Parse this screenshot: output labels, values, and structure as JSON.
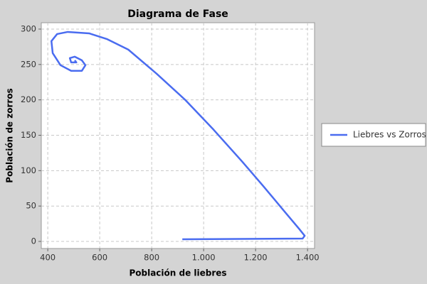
{
  "chart_data": {
    "type": "line",
    "title": "Diagrama de Fase",
    "x_label": "Población de liebres",
    "y_label": "Población de zorros",
    "xlim": [
      375,
      1427
    ],
    "ylim": [
      -10,
      309
    ],
    "xticks": [
      400,
      600,
      800,
      {
        "value": 1000,
        "label": "1.000"
      },
      {
        "value": 1200,
        "label": "1.200"
      },
      {
        "value": 1400,
        "label": "1.400"
      }
    ],
    "yticks": [
      0,
      50,
      100,
      150,
      200,
      250,
      300
    ],
    "grid": true,
    "legend": "right",
    "series": [
      {
        "name": "Liebres vs Zorros",
        "color": "#4a6cf0",
        "x": [
          918,
          1381,
          1389,
          1367,
          1312,
          1230,
          1148,
          1038,
          929,
          819,
          710,
          627,
          559,
          477,
          436,
          414,
          419,
          449,
          490,
          531,
          545,
          531,
          504,
          485,
          490,
          510,
          504
        ],
        "values": [
          3,
          4,
          8,
          18,
          42,
          78,
          113,
          158,
          200,
          237,
          271,
          286,
          294,
          296,
          293,
          283,
          266,
          249,
          241,
          241,
          249,
          256,
          261,
          259,
          253,
          253,
          256
        ]
      }
    ]
  }
}
